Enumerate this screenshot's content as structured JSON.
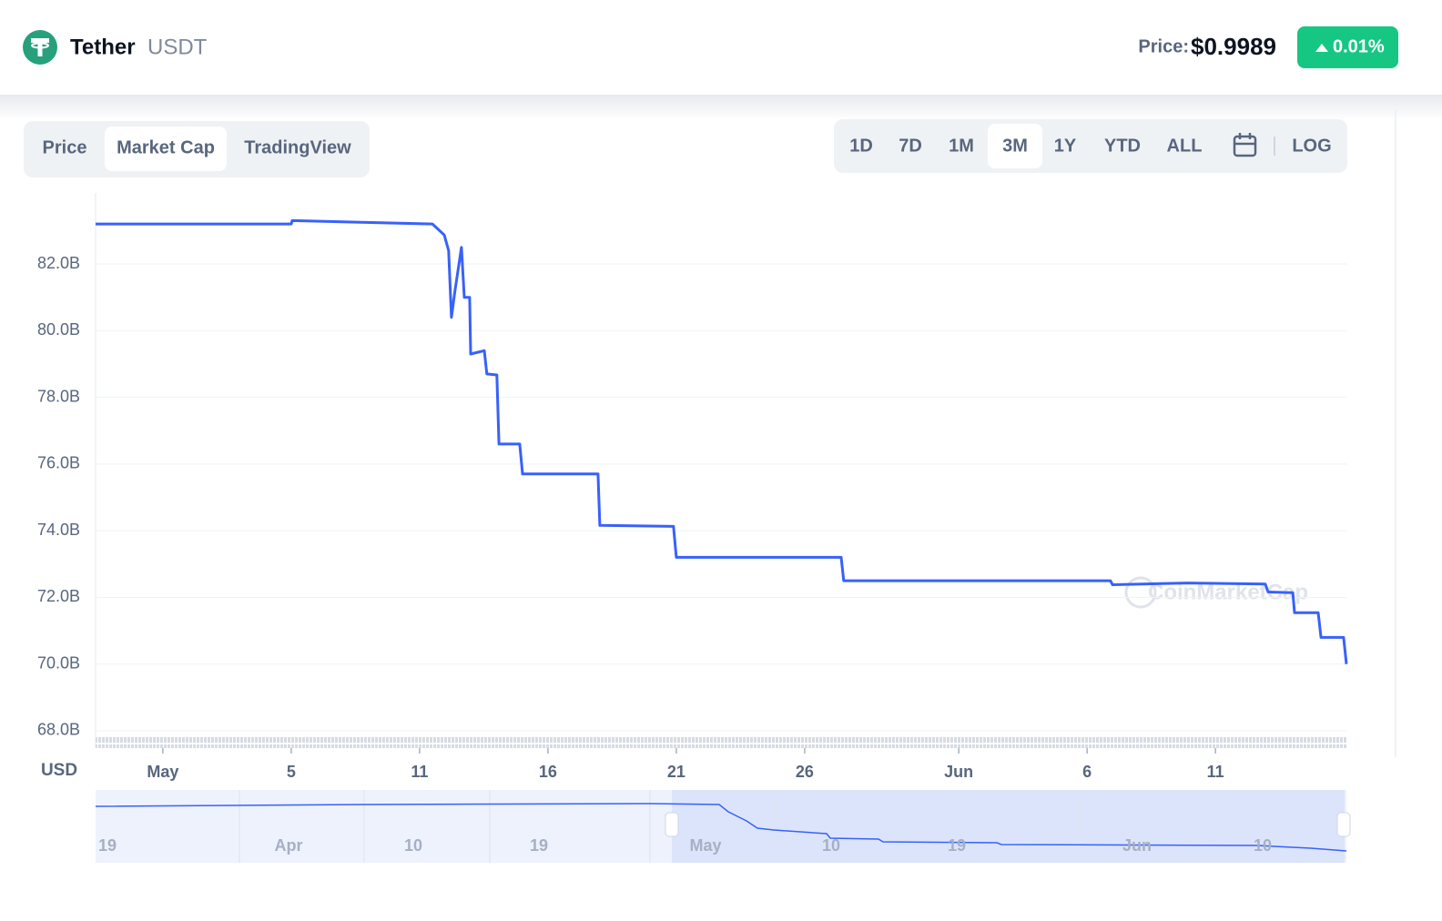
{
  "header": {
    "name": "Tether",
    "symbol": "USDT",
    "price_label": "Price:",
    "price": "$0.9989",
    "change": "0.01%"
  },
  "tabs": [
    "Price",
    "Market Cap",
    "TradingView"
  ],
  "ranges": [
    "1D",
    "7D",
    "1M",
    "3M",
    "1Y",
    "YTD",
    "ALL",
    "LOG"
  ],
  "chart_data": {
    "type": "line",
    "color": "#3861fb",
    "ylabel": "USD",
    "watermark": "CoinMarketCap",
    "x": [
      -2.62,
      5.0,
      5.04,
      10.5,
      10.96,
      11.13,
      11.24,
      11.38,
      11.63,
      11.74,
      11.95,
      11.99,
      12.52,
      12.62,
      13.01,
      13.09,
      13.9,
      14.01,
      16.95,
      17.02,
      19.89,
      20.0,
      26.42,
      26.52,
      36.91,
      36.99,
      39.93,
      42.94,
      43.05,
      44.01,
      44.08,
      45.0,
      45.11,
      45.99,
      46.1
    ],
    "values": [
      83.2,
      83.2,
      83.3,
      83.2,
      82.87,
      82.4,
      80.4,
      81.2,
      82.5,
      81.0,
      81.0,
      79.3,
      79.4,
      78.7,
      78.67,
      76.6,
      76.6,
      75.7,
      75.7,
      74.16,
      74.13,
      73.2,
      73.2,
      72.5,
      72.5,
      72.38,
      72.43,
      72.4,
      72.16,
      72.14,
      71.54,
      71.54,
      70.8,
      70.8,
      70.0
    ],
    "xlim": [
      -2.62,
      46.1
    ],
    "xticks": [
      {
        "value": 0,
        "label": "May"
      },
      5,
      {
        "value": 10,
        "label": "11"
      },
      {
        "value": 15,
        "label": "16"
      },
      {
        "value": 20,
        "label": "21"
      },
      {
        "value": 25,
        "label": "26"
      },
      {
        "value": 31,
        "label": "Jun"
      },
      {
        "value": 36,
        "label": "6"
      },
      {
        "value": 41,
        "label": "11"
      }
    ],
    "ylim": [
      67.48,
      84.13
    ],
    "yticks": [
      {
        "value": 68,
        "label": "68.0B"
      },
      {
        "value": 70,
        "label": "70.0B"
      },
      {
        "value": 72,
        "label": "72.0B"
      },
      {
        "value": 74,
        "label": "74.0B"
      },
      {
        "value": 76,
        "label": "76.0B"
      },
      {
        "value": 78,
        "label": "78.0B"
      },
      {
        "value": 80,
        "label": "80.0B"
      },
      {
        "value": 82,
        "label": "82.0B"
      }
    ],
    "grid": true
  },
  "navigator": [
    "19",
    "Apr",
    "10",
    "19",
    "May",
    "10",
    "19",
    "Jun",
    "10"
  ]
}
